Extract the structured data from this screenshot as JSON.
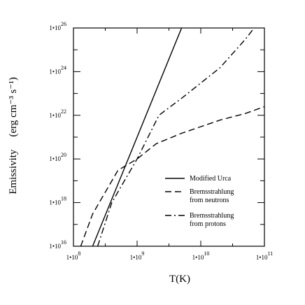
{
  "chart_data": {
    "type": "line",
    "xlabel": "T(K)",
    "ylabel": "Emissivity",
    "ylabel_unit": "(erg cm⁻³ s⁻¹)",
    "x_scale": "log",
    "y_scale": "log",
    "xlim": [
      100000000.0,
      100000000000.0
    ],
    "ylim": [
      1e+16,
      1e+26
    ],
    "x_ticks": [
      {
        "value": 100000000.0,
        "mantissa": "1•10",
        "exponent": "8"
      },
      {
        "value": 1000000000.0,
        "mantissa": "1•10",
        "exponent": "9"
      },
      {
        "value": 10000000000.0,
        "mantissa": "1•10",
        "exponent": "10"
      },
      {
        "value": 100000000000.0,
        "mantissa": "1•10",
        "exponent": "11"
      }
    ],
    "y_ticks": [
      {
        "value": 1e+16,
        "mantissa": "1•10",
        "exponent": "16"
      },
      {
        "value": 1e+18,
        "mantissa": "1•10",
        "exponent": "18"
      },
      {
        "value": 1e+20,
        "mantissa": "1•10",
        "exponent": "20"
      },
      {
        "value": 1e+22,
        "mantissa": "1•10",
        "exponent": "22"
      },
      {
        "value": 1e+24,
        "mantissa": "1•10",
        "exponent": "24"
      },
      {
        "value": 1e+26,
        "mantissa": "1•10",
        "exponent": "26"
      }
    ],
    "grid": false,
    "legend_position": "lower-right",
    "series": [
      {
        "name": "Modified Urca",
        "style": "solid",
        "x": [
          200000000.0,
          5000000000.0
        ],
        "y": [
          1e+16,
          1e+26
        ]
      },
      {
        "name": "Bremsstrahlung\nfrom neutrons",
        "style": "dashed",
        "x": [
          130000000.0,
          200000000.0,
          500000000.0,
          1000000000.0,
          2000000000.0,
          5000000000.0,
          10000000000.0,
          20000000000.0,
          50000000000.0,
          100000000000.0
        ],
        "y": [
          1e+16,
          3e+17,
          3e+19,
          1e+20,
          5e+20,
          1.5e+21,
          3e+21,
          6e+21,
          1.2e+22,
          2.5e+22
        ]
      },
      {
        "name": "Bremsstrahlung\nfrom protons",
        "style": "dashdot",
        "x": [
          240000000.0,
          400000000.0,
          1000000000.0,
          2200000000.0,
          5000000000.0,
          10000000000.0,
          20000000000.0,
          50000000000.0,
          65000000000.0
        ],
        "y": [
          1e+16,
          1e+18,
          1e+20,
          1e+22,
          6e+22,
          3e+23,
          1.5e+24,
          3e+25,
          8e+25
        ]
      }
    ]
  }
}
